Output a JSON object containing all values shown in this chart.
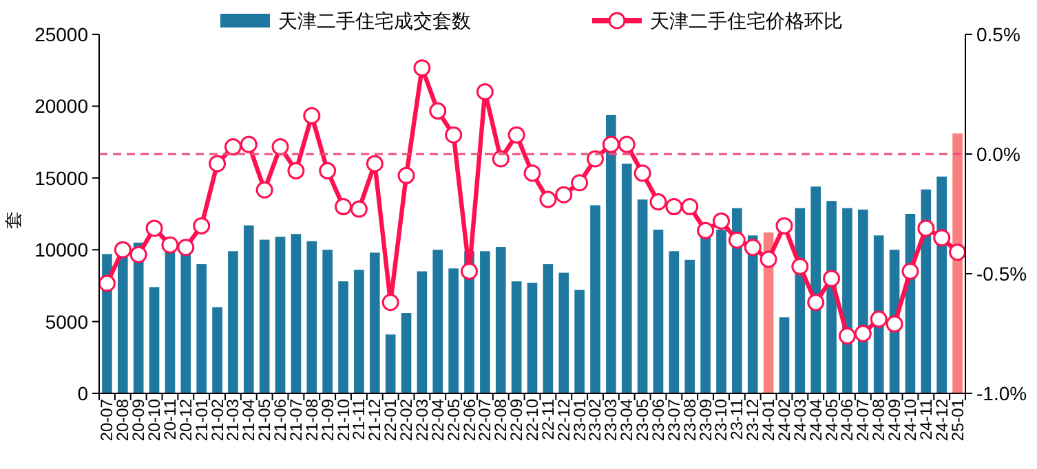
{
  "chart_data": {
    "type": "bar",
    "ylabel": "套",
    "legend": "top",
    "categories": [
      "20-07",
      "20-08",
      "20-09",
      "20-10",
      "20-11",
      "20-12",
      "21-01",
      "21-02",
      "21-03",
      "21-04",
      "21-05",
      "21-06",
      "21-07",
      "21-08",
      "21-09",
      "21-10",
      "21-11",
      "21-12",
      "22-01",
      "22-02",
      "22-03",
      "22-04",
      "22-05",
      "22-06",
      "22-07",
      "22-08",
      "22-09",
      "22-10",
      "22-11",
      "22-12",
      "23-01",
      "23-02",
      "23-03",
      "23-04",
      "23-05",
      "23-06",
      "23-07",
      "23-08",
      "23-09",
      "23-10",
      "23-11",
      "23-12",
      "24-01",
      "24-02",
      "24-03",
      "24-04",
      "24-05",
      "24-06",
      "24-07",
      "24-08",
      "24-09",
      "24-10",
      "24-11",
      "24-12",
      "25-01"
    ],
    "series": [
      {
        "name": "天津二手住宅成交套数",
        "color": "#1f78a0",
        "colors": [
          "#1f78a0",
          "#1f78a0",
          "#1f78a0",
          "#1f78a0",
          "#1f78a0",
          "#1f78a0",
          "#1f78a0",
          "#1f78a0",
          "#1f78a0",
          "#1f78a0",
          "#1f78a0",
          "#1f78a0",
          "#1f78a0",
          "#1f78a0",
          "#1f78a0",
          "#1f78a0",
          "#1f78a0",
          "#1f78a0",
          "#1f78a0",
          "#1f78a0",
          "#1f78a0",
          "#1f78a0",
          "#1f78a0",
          "#1f78a0",
          "#1f78a0",
          "#1f78a0",
          "#1f78a0",
          "#1f78a0",
          "#1f78a0",
          "#1f78a0",
          "#1f78a0",
          "#1f78a0",
          "#1f78a0",
          "#1f78a0",
          "#1f78a0",
          "#1f78a0",
          "#1f78a0",
          "#1f78a0",
          "#1f78a0",
          "#1f78a0",
          "#1f78a0",
          "#1f78a0",
          "#fa8080",
          "#1f78a0",
          "#1f78a0",
          "#1f78a0",
          "#1f78a0",
          "#1f78a0",
          "#1f78a0",
          "#1f78a0",
          "#1f78a0",
          "#1f78a0",
          "#1f78a0",
          "#1f78a0",
          "#fa8080"
        ],
        "values": [
          9700,
          9500,
          10500,
          7400,
          10000,
          9900,
          9000,
          6000,
          9900,
          11700,
          10700,
          10900,
          11100,
          10600,
          10000,
          7800,
          8600,
          9800,
          4100,
          5600,
          8500,
          10000,
          8700,
          9900,
          9900,
          10200,
          7800,
          7700,
          9000,
          8400,
          7200,
          13100,
          19400,
          16000,
          13500,
          11400,
          9900,
          9300,
          11100,
          11400,
          12900,
          11000,
          11200,
          5300,
          12900,
          14400,
          13400,
          12900,
          12800,
          11000,
          10000,
          12500,
          14200,
          15100,
          18100
        ]
      },
      {
        "name": "天津二手住宅价格环比",
        "type": "line",
        "axis": "y2",
        "color": "#ff1050",
        "marker": "circle",
        "values": [
          -0.54,
          -0.4,
          -0.42,
          -0.31,
          -0.38,
          -0.39,
          -0.3,
          -0.04,
          0.03,
          0.04,
          -0.15,
          0.03,
          -0.07,
          0.16,
          -0.07,
          -0.22,
          -0.23,
          -0.04,
          -0.62,
          -0.09,
          0.36,
          0.18,
          0.08,
          -0.49,
          0.26,
          -0.02,
          0.08,
          -0.08,
          -0.19,
          -0.17,
          -0.12,
          -0.02,
          0.04,
          0.04,
          -0.08,
          -0.2,
          -0.22,
          -0.22,
          -0.32,
          -0.28,
          -0.36,
          -0.39,
          -0.44,
          -0.3,
          -0.47,
          -0.62,
          -0.52,
          -0.76,
          -0.75,
          -0.69,
          -0.71,
          -0.49,
          -0.31,
          -0.35,
          -0.41
        ]
      }
    ],
    "ylim": [
      0,
      25000
    ],
    "yticks": [
      0,
      5000,
      10000,
      15000,
      20000,
      25000
    ],
    "y2lim": [
      -1.0,
      0.5
    ],
    "y2ticks": [
      {
        "value": -1.0,
        "label": "-1.0%"
      },
      {
        "value": -0.5,
        "label": "-0.5%"
      },
      {
        "value": 0.0,
        "label": "0.0%"
      },
      {
        "value": 0.5,
        "label": "0.5%"
      }
    ],
    "ref_lines": [
      {
        "axis": "y2",
        "value": 0,
        "color": "#f0507a",
        "line_style": "dashed"
      }
    ]
  }
}
